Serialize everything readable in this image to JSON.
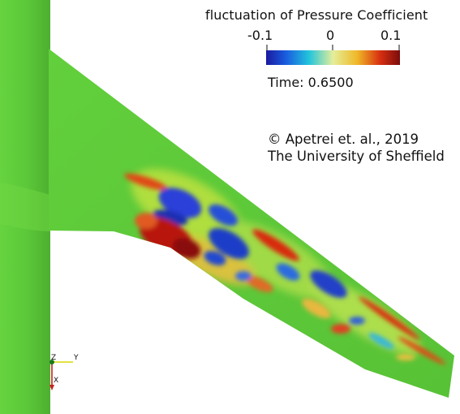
{
  "legend": {
    "title": "fluctuation of Pressure Coefficient",
    "ticks": [
      "-0.1",
      "0",
      "0.1"
    ],
    "colormap": [
      "#2a2ab8",
      "#1f7fe0",
      "#23c8d8",
      "#d8e858",
      "#f4b020",
      "#d83010",
      "#8a1010"
    ]
  },
  "time_label": "Time: 0.6500",
  "credit": {
    "line1": "© Apetrei et. al., 2019",
    "line2": "The University of Sheffield"
  },
  "axes_triad": {
    "z_label": "Z",
    "y_label": "Y",
    "x_label": "X"
  },
  "colors": {
    "background": "#ffffff",
    "surface_base": "#5fcd3a",
    "high": "#c01a0a",
    "low": "#1a3ad0"
  }
}
